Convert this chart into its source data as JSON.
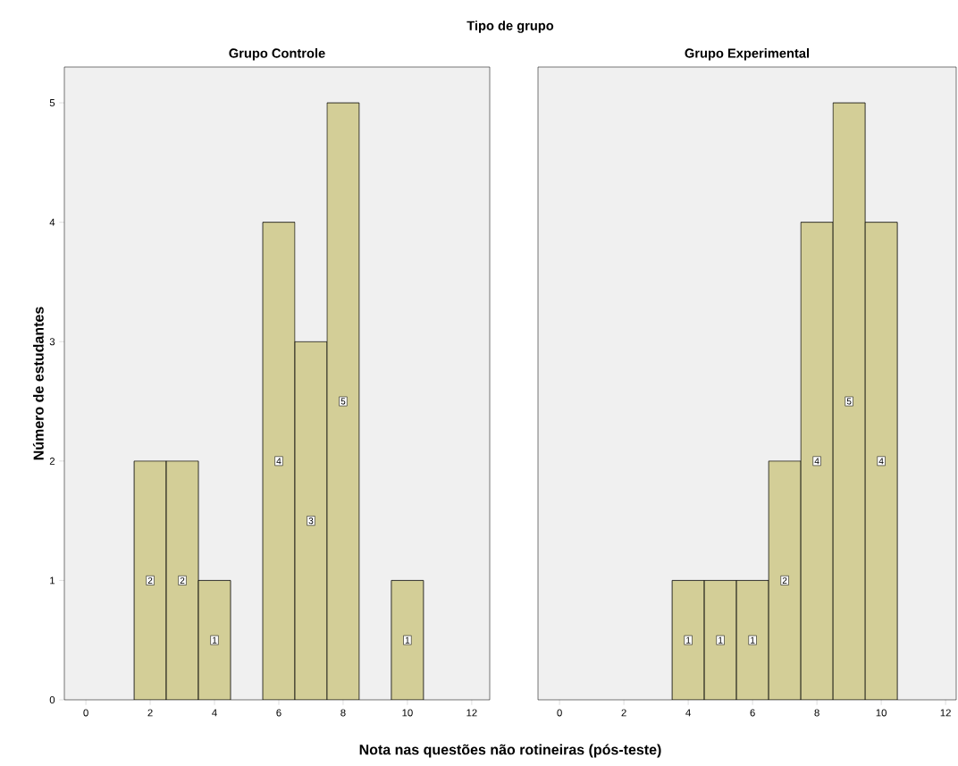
{
  "chart_data": [
    {
      "type": "histogram",
      "title": "Grupo Controle",
      "xlabel": "Nota nas questões não rotineiras (pós-teste)",
      "ylabel": "Número de estudantes",
      "annotations": [
        "Tipo de grupo"
      ],
      "bins": [
        1.5,
        2.5,
        3.5,
        4.5,
        5.5,
        6.5,
        7.5,
        8.5,
        9.5,
        10.5
      ],
      "values": [
        2,
        2,
        1,
        0,
        4,
        3,
        5,
        0,
        1
      ],
      "value_labels": [
        "2",
        "2",
        "1",
        null,
        "4",
        "3",
        "5",
        null,
        "1"
      ],
      "color": "#d3ce97",
      "xlim": [
        -0.67,
        12.56
      ],
      "xticks": [
        0,
        2,
        4,
        6,
        8,
        10,
        12
      ],
      "ylim": [
        0,
        5.3
      ],
      "yticks": [
        0,
        1,
        2,
        3,
        4,
        5
      ],
      "grid": false
    },
    {
      "type": "histogram",
      "title": "Grupo Experimental",
      "bins": [
        3.5,
        4.5,
        5.5,
        6.5,
        7.5,
        8.5,
        9.5,
        10.5
      ],
      "values": [
        1,
        1,
        1,
        2,
        4,
        5,
        4
      ],
      "value_labels": [
        "1",
        "1",
        "1",
        "2",
        "4",
        "5",
        "4"
      ],
      "color": "#d3ce97",
      "xlim": [
        -0.67,
        12.33
      ],
      "xticks": [
        0,
        2,
        4,
        6,
        8,
        10,
        12
      ],
      "ylim": [
        0,
        5.3
      ],
      "yticks": [
        0,
        1,
        2,
        3,
        4,
        5
      ],
      "grid": false,
      "tick_labels": "x"
    }
  ]
}
